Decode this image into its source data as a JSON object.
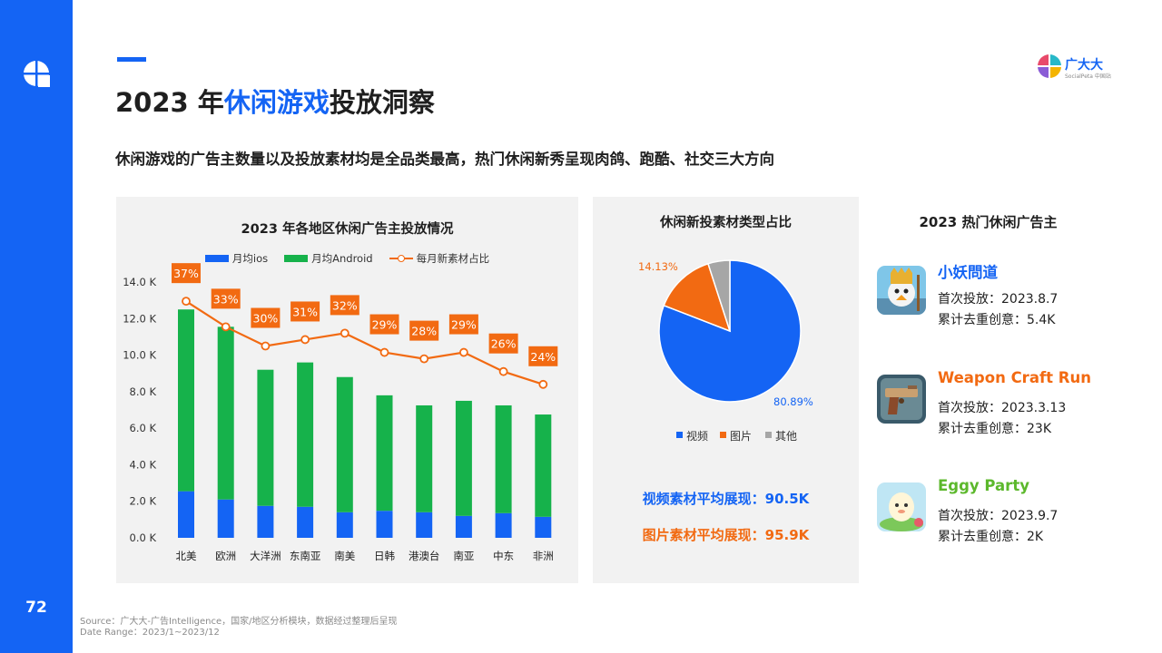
{
  "page": {
    "number": "72",
    "title_prefix": "2023 年",
    "title_highlight": "休闲游戏",
    "title_suffix": "投放洞察",
    "subtitle": "休闲游戏的广告主数量以及投放素材均是全品类最高，热门休闲新秀呈现肉鸽、跑酷、社交三大方向",
    "source": "Source：广大大-广告Intelligence，国家/地区分析模块，数据经过整理后呈现",
    "date_range": "Date Range：2023/1~2023/12"
  },
  "brand": {
    "name": "广大大",
    "sub": "SocialPeta 中国站"
  },
  "colors": {
    "blue": "#1464f4",
    "green": "#16b24b",
    "orange": "#f26a12",
    "gray": "#a6a6a6"
  },
  "chart_data": [
    {
      "type": "bar",
      "stacked": true,
      "title": "2023 年各地区休闲广告主投放情况",
      "categories": [
        "北美",
        "欧洲",
        "大洋洲",
        "东南亚",
        "南美",
        "日韩",
        "港澳台",
        "南亚",
        "中东",
        "非洲"
      ],
      "series": [
        {
          "name": "月均ios",
          "color": "#1464f4",
          "values": [
            2550,
            2100,
            1750,
            1700,
            1400,
            1480,
            1400,
            1200,
            1350,
            1150
          ]
        },
        {
          "name": "月均Android",
          "color": "#16b24b",
          "values": [
            9950,
            9450,
            7450,
            7900,
            7400,
            6320,
            5850,
            6300,
            5900,
            5600
          ]
        }
      ],
      "line": {
        "name": "每月新素材占比",
        "color": "#f26a12",
        "values": [
          37,
          33,
          30,
          31,
          32,
          29,
          28,
          29,
          26,
          24
        ],
        "labels": [
          "37%",
          "33%",
          "30%",
          "31%",
          "32%",
          "29%",
          "28%",
          "29%",
          "26%",
          "24%"
        ]
      },
      "y_ticks": [
        "0.0 K",
        "2.0 K",
        "4.0 K",
        "6.0 K",
        "8.0 K",
        "10.0 K",
        "12.0 K",
        "14.0 K"
      ],
      "ylim": [
        0,
        14000
      ],
      "legend_position": "top"
    },
    {
      "type": "pie",
      "title": "休闲新投素材类型占比",
      "slices": [
        {
          "name": "视频",
          "value": 80.89,
          "label": "80.89%",
          "color": "#1464f4"
        },
        {
          "name": "图片",
          "value": 14.13,
          "label": "14.13%",
          "color": "#f26a12"
        },
        {
          "name": "其他",
          "value": 4.98,
          "label": "",
          "color": "#a6a6a6"
        }
      ],
      "legend_position": "bottom"
    }
  ],
  "stats": {
    "video": "视频素材平均展现：90.5K",
    "image": "图片素材平均展现：95.9K"
  },
  "advertisers": {
    "title": "2023 热门休闲广告主",
    "items": [
      {
        "name": "小妖問道",
        "color": "#1464f4",
        "first": "首次投放：2023.8.7",
        "creatives": "累计去重创意：5.4K",
        "icon": "cartoon-character-icon"
      },
      {
        "name": "Weapon Craft Run",
        "color": "#f26a12",
        "first": "首次投放：2023.3.13",
        "creatives": "累计去重创意：23K",
        "icon": "pistol-icon"
      },
      {
        "name": "Eggy Party",
        "color": "#5cb82c",
        "first": "首次投放：2023.9.7",
        "creatives": "累计去重创意：2K",
        "icon": "egg-character-icon"
      }
    ]
  }
}
